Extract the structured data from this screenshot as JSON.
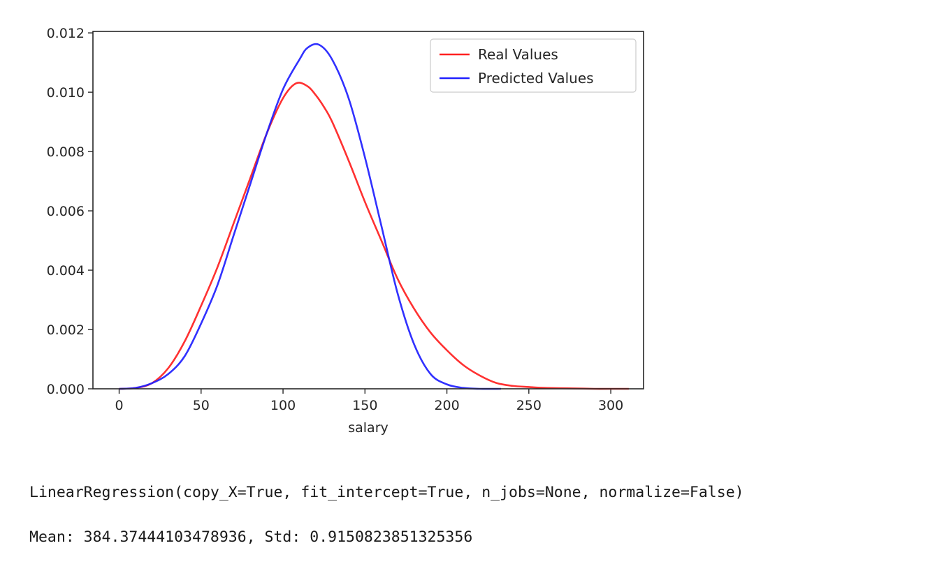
{
  "chart_data": {
    "type": "line",
    "xlabel": "salary",
    "ylabel": "",
    "xlim": [
      -16,
      320
    ],
    "ylim": [
      0,
      0.01205
    ],
    "xticks": [
      0,
      50,
      100,
      150,
      200,
      250,
      300
    ],
    "xtick_labels": [
      "0",
      "50",
      "100",
      "150",
      "200",
      "250",
      "300"
    ],
    "yticks": [
      0,
      0.002,
      0.004,
      0.006,
      0.008,
      0.01,
      0.012
    ],
    "ytick_labels": [
      "0.000",
      "0.002",
      "0.004",
      "0.006",
      "0.008",
      "0.010",
      "0.012"
    ],
    "grid": false,
    "legend_position": "top-right",
    "series": [
      {
        "name": "Real Values",
        "color": "#ff2020",
        "x": [
          0,
          10,
          20,
          30,
          40,
          50,
          60,
          70,
          80,
          90,
          100,
          108,
          115,
          120,
          125,
          130,
          140,
          150,
          160,
          170,
          180,
          190,
          200,
          210,
          220,
          230,
          240,
          250,
          260,
          270,
          280,
          290,
          300,
          311
        ],
        "y": [
          0,
          3e-05,
          0.00019,
          0.0007,
          0.0016,
          0.0028,
          0.0041,
          0.0056,
          0.0071,
          0.0086,
          0.0098,
          0.0103,
          0.0102,
          0.0099,
          0.0095,
          0.009,
          0.0077,
          0.0063,
          0.005,
          0.0037,
          0.0027,
          0.0019,
          0.0013,
          0.0008,
          0.00045,
          0.0002,
          0.0001,
          6e-05,
          3e-05,
          2e-05,
          1e-05,
          0,
          0,
          0
        ]
      },
      {
        "name": "Predicted Values",
        "color": "#2020ff",
        "x": [
          0,
          10,
          20,
          30,
          40,
          50,
          60,
          70,
          80,
          90,
          100,
          110,
          115,
          122,
          130,
          140,
          150,
          160,
          170,
          180,
          190,
          200,
          210,
          220,
          233
        ],
        "y": [
          0,
          3e-05,
          0.00019,
          0.0005,
          0.0011,
          0.0022,
          0.0035,
          0.0052,
          0.0069,
          0.0086,
          0.0101,
          0.0111,
          0.0115,
          0.0116,
          0.0111,
          0.0098,
          0.0078,
          0.0055,
          0.0032,
          0.0015,
          0.0005,
          0.00015,
          3e-05,
          0,
          0
        ]
      }
    ]
  },
  "output": {
    "line1": "LinearRegression(copy_X=True, fit_intercept=True, n_jobs=None, normalize=False)",
    "line2": "Mean: 384.37444103478936, Std: 0.9150823851325356"
  }
}
